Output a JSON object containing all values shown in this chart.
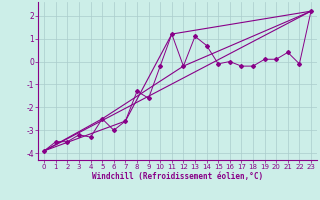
{
  "xlabel": "Windchill (Refroidissement éolien,°C)",
  "bg_color": "#cceee8",
  "line_color": "#880088",
  "grid_color": "#aacccc",
  "xlim": [
    -0.5,
    23.5
  ],
  "ylim": [
    -4.3,
    2.6
  ],
  "yticks": [
    -4,
    -3,
    -2,
    -1,
    0,
    1,
    2
  ],
  "xticks": [
    0,
    1,
    2,
    3,
    4,
    5,
    6,
    7,
    8,
    9,
    10,
    11,
    12,
    13,
    14,
    15,
    16,
    17,
    18,
    19,
    20,
    21,
    22,
    23
  ],
  "scatter_x": [
    0,
    1,
    2,
    3,
    4,
    5,
    6,
    7,
    8,
    9,
    10,
    11,
    12,
    13,
    14,
    15,
    16,
    17,
    18,
    19,
    20,
    21,
    22,
    23
  ],
  "scatter_y": [
    -3.9,
    -3.5,
    -3.5,
    -3.2,
    -3.3,
    -2.5,
    -3.0,
    -2.6,
    -1.3,
    -1.6,
    -0.2,
    1.2,
    -0.2,
    1.1,
    0.7,
    -0.1,
    0.0,
    -0.2,
    -0.2,
    0.1,
    0.1,
    0.4,
    -0.1,
    2.2
  ],
  "line1_x": [
    0,
    23
  ],
  "line1_y": [
    -3.9,
    2.2
  ],
  "line2_x": [
    0,
    5,
    12,
    23
  ],
  "line2_y": [
    -3.9,
    -2.5,
    -0.2,
    2.2
  ],
  "line3_x": [
    0,
    7,
    11,
    23
  ],
  "line3_y": [
    -3.9,
    -2.6,
    1.2,
    2.2
  ]
}
